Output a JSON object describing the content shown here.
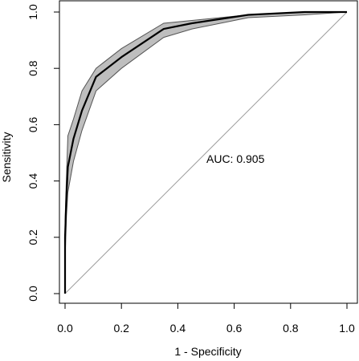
{
  "chart_data": {
    "type": "line",
    "xlabel": "1 - Specificity",
    "ylabel": "Sensitivity",
    "xlim": [
      0,
      1
    ],
    "ylim": [
      0,
      1
    ],
    "xticks": [
      "0.0",
      "0.2",
      "0.4",
      "0.6",
      "0.8",
      "1.0"
    ],
    "yticks": [
      "0.0",
      "0.2",
      "0.4",
      "0.6",
      "0.8",
      "1.0"
    ],
    "grid": false,
    "annotation": "AUC: 0.905",
    "roc_curve": {
      "x": [
        0.0,
        0.0,
        0.005,
        0.01,
        0.03,
        0.06,
        0.11,
        0.2,
        0.35,
        0.45,
        0.65,
        0.85,
        1.0
      ],
      "y": [
        0.0,
        0.2,
        0.35,
        0.45,
        0.55,
        0.65,
        0.77,
        0.84,
        0.94,
        0.96,
        0.99,
        1.0,
        1.0
      ]
    },
    "confidence_band": {
      "x": [
        0.0,
        0.0,
        0.005,
        0.01,
        0.03,
        0.06,
        0.11,
        0.2,
        0.35,
        0.45,
        0.65,
        0.85,
        1.0
      ],
      "upper": [
        0.12,
        0.26,
        0.42,
        0.56,
        0.62,
        0.72,
        0.8,
        0.87,
        0.96,
        0.97,
        0.99,
        1.0,
        1.0
      ],
      "lower": [
        0.0,
        0.12,
        0.28,
        0.36,
        0.47,
        0.58,
        0.72,
        0.8,
        0.91,
        0.94,
        0.98,
        0.99,
        1.0
      ]
    },
    "reference_line": {
      "x": [
        0,
        1
      ],
      "y": [
        0,
        1
      ]
    },
    "colors": {
      "curve": "#000000",
      "band_fill": "#bebebe",
      "band_edge": "#555555",
      "reference": "#9e9e9e",
      "frame": "#000000"
    }
  }
}
